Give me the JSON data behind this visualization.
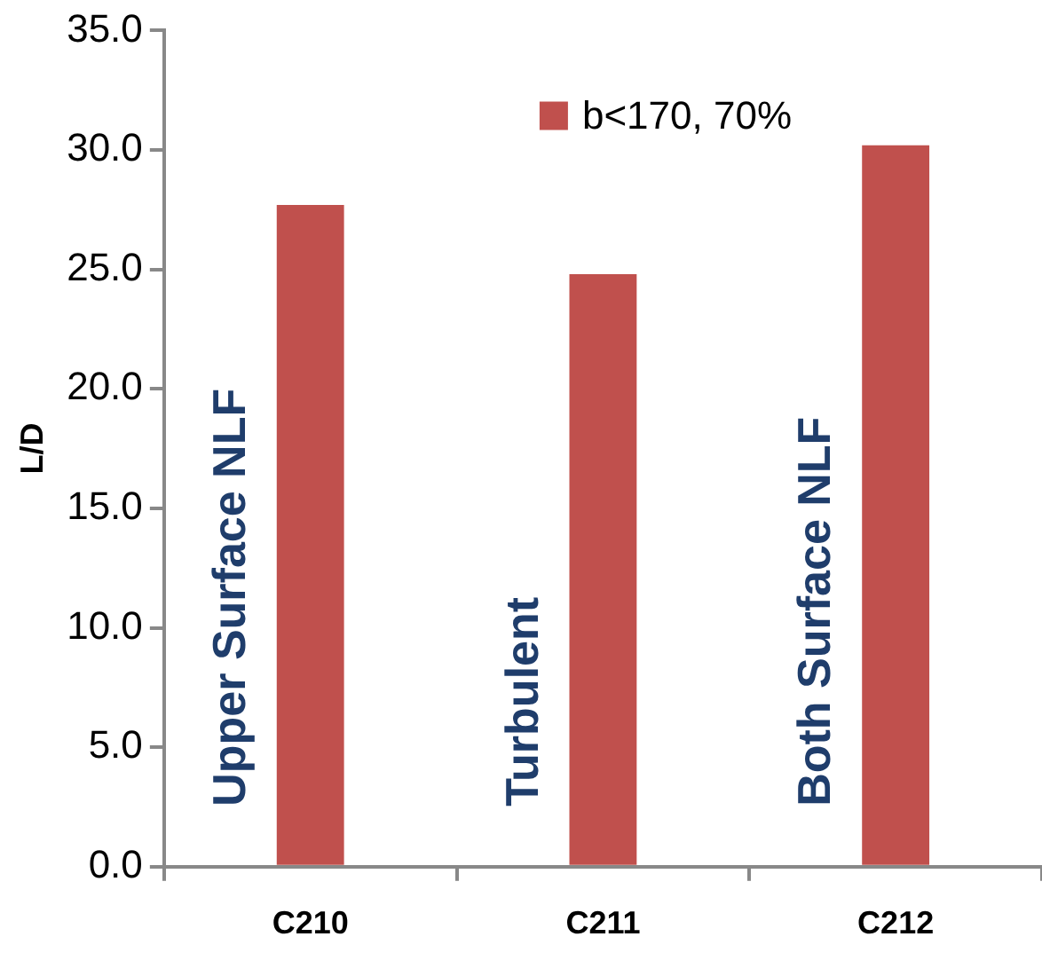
{
  "chart_data": {
    "type": "bar",
    "ylabel": "L/D",
    "categories": [
      "C210",
      "C211",
      "C212"
    ],
    "series": [
      {
        "name": "b<170, 70%",
        "color": "#c0504d",
        "values": [
          27.7,
          24.8,
          30.2
        ]
      }
    ],
    "ylim": [
      0,
      35
    ],
    "yticks": [
      {
        "value": 0,
        "label": "0.0"
      },
      {
        "value": 5,
        "label": "5.0"
      },
      {
        "value": 10,
        "label": "10.0"
      },
      {
        "value": 15,
        "label": "15.0"
      },
      {
        "value": 20,
        "label": "20.0"
      },
      {
        "value": 25,
        "label": "25.0"
      },
      {
        "value": 30,
        "label": "30.0"
      },
      {
        "value": 35,
        "label": "35.0"
      }
    ],
    "grid": false,
    "legend": "top right",
    "annotations": [
      "Upper Surface NLF",
      "Turbulent",
      "Both Surface NLF"
    ]
  }
}
